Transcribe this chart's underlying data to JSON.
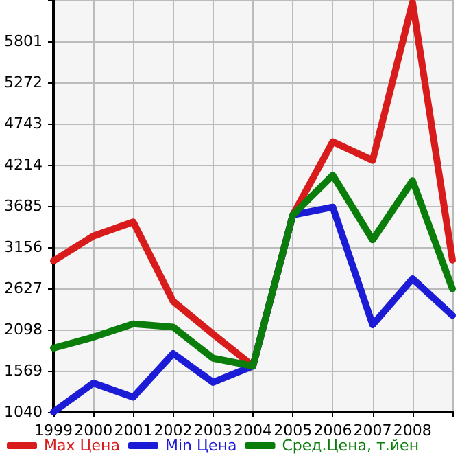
{
  "chart_data": {
    "type": "line",
    "x": [
      1999,
      2000,
      2001,
      2002,
      2003,
      2004,
      2005,
      2006,
      2007,
      2008,
      2009
    ],
    "series": [
      {
        "name": "Max Цена",
        "color": "#d81b1b",
        "values": [
          2980,
          3300,
          3480,
          2460,
          2040,
          1630,
          3570,
          4510,
          4270,
          6300,
          2990
        ]
      },
      {
        "name": "Min Цена",
        "color": "#1c1cd6",
        "values": [
          1040,
          1410,
          1230,
          1790,
          1420,
          1630,
          3570,
          3670,
          2160,
          2750,
          2280
        ]
      },
      {
        "name": "Сред.Цена, т.йен",
        "color": "#0a7d0a",
        "values": [
          1860,
          2000,
          2170,
          2130,
          1730,
          1630,
          3570,
          4080,
          3250,
          4010,
          2620
        ]
      }
    ],
    "xlim": [
      1999,
      2009
    ],
    "xticks": [
      1999,
      2000,
      2001,
      2002,
      2003,
      2004,
      2005,
      2006,
      2007,
      2008,
      {
        "value": 2009,
        "label": null
      }
    ],
    "ylim": [
      1040,
      6330
    ],
    "yticks": [
      1040,
      1569,
      2098,
      2627,
      3156,
      3685,
      4214,
      4743,
      5272,
      5801,
      {
        "value": 6330,
        "label": null
      }
    ],
    "grid": true,
    "legend": "bottom",
    "marker": "none",
    "line_style": "solid"
  }
}
